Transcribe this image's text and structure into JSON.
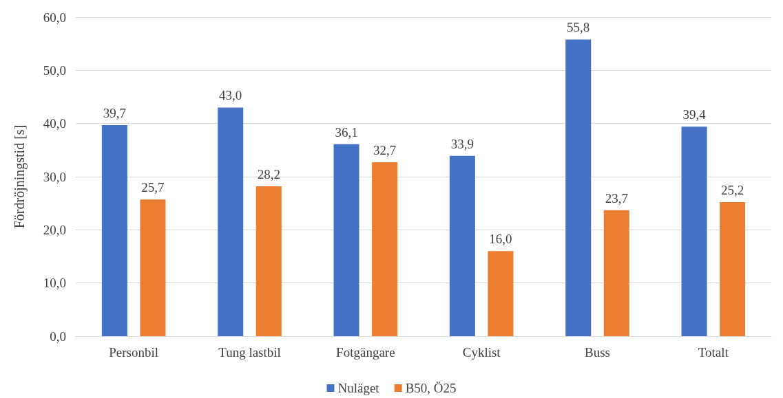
{
  "chart_data": {
    "type": "bar",
    "ylabel": "Fördröjningstid [s]",
    "categories": [
      "Personbil",
      "Tung lastbil",
      "Fotgängare",
      "Cyklist",
      "Buss",
      "Totalt"
    ],
    "series": [
      {
        "name": "Nuläget",
        "color": "#4472c4",
        "values": [
          39.7,
          43.0,
          36.1,
          33.9,
          55.8,
          39.4
        ],
        "value_labels": [
          "39,7",
          "43,0",
          "36,1",
          "33,9",
          "55,8",
          "39,4"
        ]
      },
      {
        "name": "B50, Ö25",
        "color": "#ed7d31",
        "values": [
          25.7,
          28.2,
          32.7,
          16.0,
          23.7,
          25.2
        ],
        "value_labels": [
          "25,7",
          "28,2",
          "32,7",
          "16,0",
          "23,7",
          "25,2"
        ]
      }
    ],
    "ylim": [
      0,
      60
    ],
    "yticks": [
      {
        "value": 0,
        "label": "0,0"
      },
      {
        "value": 10,
        "label": "10,0"
      },
      {
        "value": 20,
        "label": "20,0"
      },
      {
        "value": 30,
        "label": "30,0"
      },
      {
        "value": 40,
        "label": "40,0"
      },
      {
        "value": 50,
        "label": "50,0"
      },
      {
        "value": 60,
        "label": "60,0"
      }
    ],
    "grid": "y",
    "legend": "bottom"
  }
}
